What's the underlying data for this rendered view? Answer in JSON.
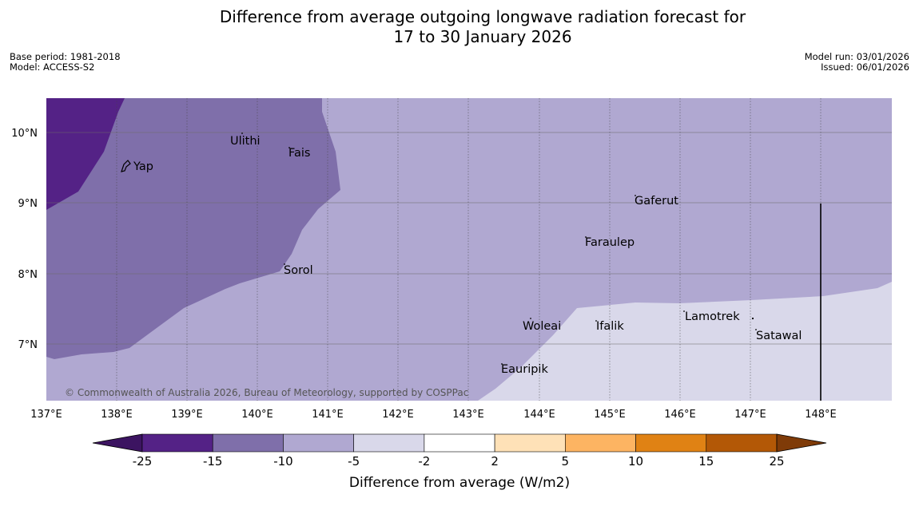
{
  "title": {
    "line1": "Difference from average outgoing longwave radiation forecast for",
    "line2": "17 to 30 January 2026"
  },
  "meta_left": {
    "base_period": "Base period: 1981-2018",
    "model": "Model: ACCESS-S2"
  },
  "meta_right": {
    "model_run": "Model run: 03/01/2026",
    "issued": "Issued: 06/01/2026"
  },
  "map": {
    "extent": {
      "lon": [
        137,
        149
      ],
      "lat": [
        6.2,
        10.5
      ]
    },
    "lat_labels": [
      "10°N",
      "9°N",
      "8°N",
      "7°N"
    ],
    "lon_labels": [
      "137°E",
      "138°E",
      "139°E",
      "140°E",
      "141°E",
      "142°E",
      "143°E",
      "144°E",
      "145°E",
      "146°E",
      "147°E",
      "148°E"
    ],
    "places": [
      "Yap",
      "Ulithi",
      "Fais",
      "Gaferut",
      "Faraulep",
      "Sorol",
      "Woleai",
      "Ifalik",
      "Lamotrek",
      "Satawal",
      "Eauripik"
    ],
    "copyright": "© Commonwealth of Australia 2026, Bureau of Meteorology, supported by COSPPac"
  },
  "colorbar": {
    "ticks": [
      "-25",
      "-15",
      "-10",
      "-5",
      "-2",
      "2",
      "5",
      "10",
      "15",
      "25"
    ],
    "label": "Difference from average (W/m2)",
    "colors": [
      "#3c1461",
      "#542286",
      "#7f6faa",
      "#b0a8d1",
      "#d9d8ea",
      "#ffffff",
      "#fee1b7",
      "#fdb462",
      "#e08214",
      "#b35806",
      "#7f3b08"
    ]
  }
}
